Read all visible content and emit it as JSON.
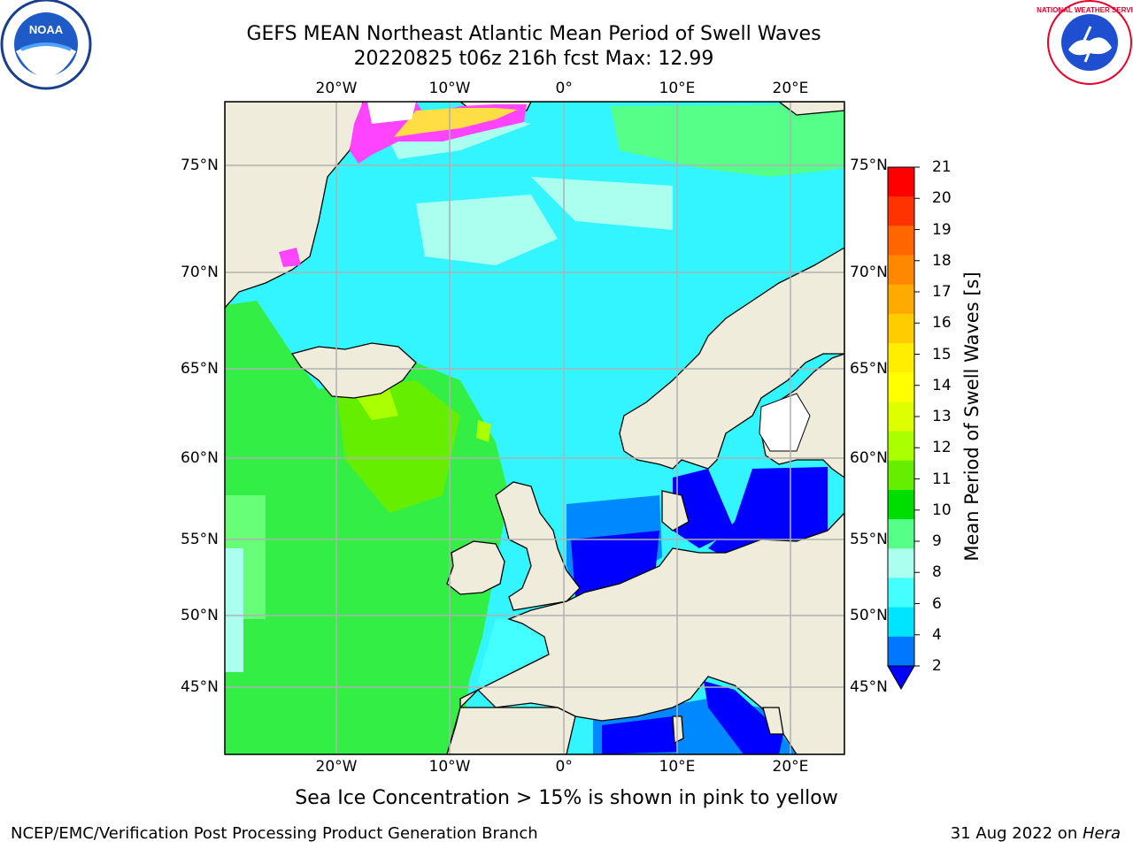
{
  "title_line1": "GEFS MEAN Northeast Atlantic Mean Period of Swell Waves",
  "title_line2": "20220825 t06z 216h fcst   Max: 12.99",
  "note": "Sea Ice Concentration > 15% is shown in pink to yellow",
  "footer_left": "NCEP/EMC/Verification Post Processing Product Generation Branch",
  "footer_date": "31 Aug 2022 on ",
  "footer_host": "Hera",
  "logos": {
    "left": "NOAA",
    "right": "NATIONAL WEATHER SERVICE"
  },
  "lon_labels": [
    "20°W",
    "10°W",
    "0°",
    "10°E",
    "20°E"
  ],
  "lat_labels": [
    "75°N",
    "70°N",
    "65°N",
    "60°N",
    "55°N",
    "50°N",
    "45°N"
  ],
  "colorbar": {
    "title": "Mean Period of Swell Waves [s]",
    "ticks": [
      "21",
      "20",
      "19",
      "18",
      "17",
      "16",
      "15",
      "14",
      "13",
      "12",
      "11",
      "10",
      "9",
      "8",
      "6",
      "4",
      "2"
    ],
    "colors": [
      "#ff0000",
      "#ff3300",
      "#ff6600",
      "#ff8800",
      "#ffaa00",
      "#ffcc00",
      "#ffee00",
      "#ffff00",
      "#ddff00",
      "#aaff00",
      "#66ee00",
      "#00dd00",
      "#55ff88",
      "#aaffee",
      "#44ffff",
      "#00e5ff",
      "#0077ff"
    ],
    "under_color": "#0000ff"
  },
  "colors": {
    "land": "#efecdc",
    "ocean_cyan": "#33f5ff",
    "ocean_green": "#33ee44",
    "ocean_lightgreen": "#66ff77",
    "ocean_blue": "#0000ff",
    "ocean_mid_blue": "#0088ff",
    "ice_pink": "#ff44ff",
    "ice_yellow": "#ffdd44",
    "grid": "#b0b0b0"
  }
}
